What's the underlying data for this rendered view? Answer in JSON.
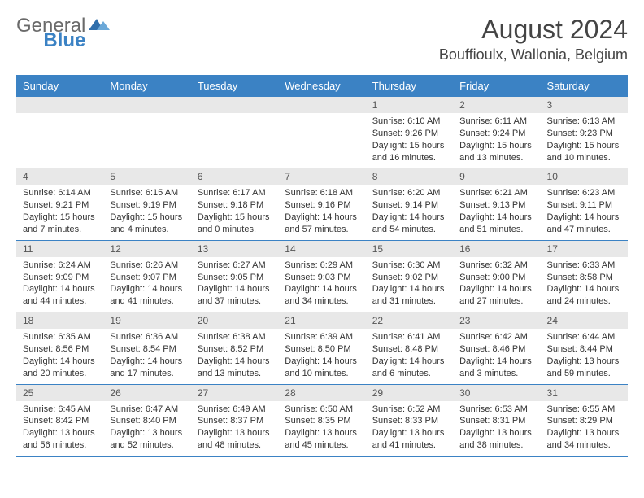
{
  "brand": {
    "word1": "General",
    "word2": "Blue"
  },
  "title": "August 2024",
  "location": "Bouffioulx, Wallonia, Belgium",
  "colors": {
    "header_bg": "#3b82c4",
    "header_text": "#ffffff",
    "daynum_bg": "#e8e8e8",
    "border": "#3b82c4",
    "body_text": "#333333",
    "logo_gray": "#6a6a6a",
    "logo_blue": "#3b82c4"
  },
  "day_names": [
    "Sunday",
    "Monday",
    "Tuesday",
    "Wednesday",
    "Thursday",
    "Friday",
    "Saturday"
  ],
  "weeks": [
    [
      null,
      null,
      null,
      null,
      {
        "n": "1",
        "sr": "Sunrise: 6:10 AM",
        "ss": "Sunset: 9:26 PM",
        "dl": "Daylight: 15 hours and 16 minutes."
      },
      {
        "n": "2",
        "sr": "Sunrise: 6:11 AM",
        "ss": "Sunset: 9:24 PM",
        "dl": "Daylight: 15 hours and 13 minutes."
      },
      {
        "n": "3",
        "sr": "Sunrise: 6:13 AM",
        "ss": "Sunset: 9:23 PM",
        "dl": "Daylight: 15 hours and 10 minutes."
      }
    ],
    [
      {
        "n": "4",
        "sr": "Sunrise: 6:14 AM",
        "ss": "Sunset: 9:21 PM",
        "dl": "Daylight: 15 hours and 7 minutes."
      },
      {
        "n": "5",
        "sr": "Sunrise: 6:15 AM",
        "ss": "Sunset: 9:19 PM",
        "dl": "Daylight: 15 hours and 4 minutes."
      },
      {
        "n": "6",
        "sr": "Sunrise: 6:17 AM",
        "ss": "Sunset: 9:18 PM",
        "dl": "Daylight: 15 hours and 0 minutes."
      },
      {
        "n": "7",
        "sr": "Sunrise: 6:18 AM",
        "ss": "Sunset: 9:16 PM",
        "dl": "Daylight: 14 hours and 57 minutes."
      },
      {
        "n": "8",
        "sr": "Sunrise: 6:20 AM",
        "ss": "Sunset: 9:14 PM",
        "dl": "Daylight: 14 hours and 54 minutes."
      },
      {
        "n": "9",
        "sr": "Sunrise: 6:21 AM",
        "ss": "Sunset: 9:13 PM",
        "dl": "Daylight: 14 hours and 51 minutes."
      },
      {
        "n": "10",
        "sr": "Sunrise: 6:23 AM",
        "ss": "Sunset: 9:11 PM",
        "dl": "Daylight: 14 hours and 47 minutes."
      }
    ],
    [
      {
        "n": "11",
        "sr": "Sunrise: 6:24 AM",
        "ss": "Sunset: 9:09 PM",
        "dl": "Daylight: 14 hours and 44 minutes."
      },
      {
        "n": "12",
        "sr": "Sunrise: 6:26 AM",
        "ss": "Sunset: 9:07 PM",
        "dl": "Daylight: 14 hours and 41 minutes."
      },
      {
        "n": "13",
        "sr": "Sunrise: 6:27 AM",
        "ss": "Sunset: 9:05 PM",
        "dl": "Daylight: 14 hours and 37 minutes."
      },
      {
        "n": "14",
        "sr": "Sunrise: 6:29 AM",
        "ss": "Sunset: 9:03 PM",
        "dl": "Daylight: 14 hours and 34 minutes."
      },
      {
        "n": "15",
        "sr": "Sunrise: 6:30 AM",
        "ss": "Sunset: 9:02 PM",
        "dl": "Daylight: 14 hours and 31 minutes."
      },
      {
        "n": "16",
        "sr": "Sunrise: 6:32 AM",
        "ss": "Sunset: 9:00 PM",
        "dl": "Daylight: 14 hours and 27 minutes."
      },
      {
        "n": "17",
        "sr": "Sunrise: 6:33 AM",
        "ss": "Sunset: 8:58 PM",
        "dl": "Daylight: 14 hours and 24 minutes."
      }
    ],
    [
      {
        "n": "18",
        "sr": "Sunrise: 6:35 AM",
        "ss": "Sunset: 8:56 PM",
        "dl": "Daylight: 14 hours and 20 minutes."
      },
      {
        "n": "19",
        "sr": "Sunrise: 6:36 AM",
        "ss": "Sunset: 8:54 PM",
        "dl": "Daylight: 14 hours and 17 minutes."
      },
      {
        "n": "20",
        "sr": "Sunrise: 6:38 AM",
        "ss": "Sunset: 8:52 PM",
        "dl": "Daylight: 14 hours and 13 minutes."
      },
      {
        "n": "21",
        "sr": "Sunrise: 6:39 AM",
        "ss": "Sunset: 8:50 PM",
        "dl": "Daylight: 14 hours and 10 minutes."
      },
      {
        "n": "22",
        "sr": "Sunrise: 6:41 AM",
        "ss": "Sunset: 8:48 PM",
        "dl": "Daylight: 14 hours and 6 minutes."
      },
      {
        "n": "23",
        "sr": "Sunrise: 6:42 AM",
        "ss": "Sunset: 8:46 PM",
        "dl": "Daylight: 14 hours and 3 minutes."
      },
      {
        "n": "24",
        "sr": "Sunrise: 6:44 AM",
        "ss": "Sunset: 8:44 PM",
        "dl": "Daylight: 13 hours and 59 minutes."
      }
    ],
    [
      {
        "n": "25",
        "sr": "Sunrise: 6:45 AM",
        "ss": "Sunset: 8:42 PM",
        "dl": "Daylight: 13 hours and 56 minutes."
      },
      {
        "n": "26",
        "sr": "Sunrise: 6:47 AM",
        "ss": "Sunset: 8:40 PM",
        "dl": "Daylight: 13 hours and 52 minutes."
      },
      {
        "n": "27",
        "sr": "Sunrise: 6:49 AM",
        "ss": "Sunset: 8:37 PM",
        "dl": "Daylight: 13 hours and 48 minutes."
      },
      {
        "n": "28",
        "sr": "Sunrise: 6:50 AM",
        "ss": "Sunset: 8:35 PM",
        "dl": "Daylight: 13 hours and 45 minutes."
      },
      {
        "n": "29",
        "sr": "Sunrise: 6:52 AM",
        "ss": "Sunset: 8:33 PM",
        "dl": "Daylight: 13 hours and 41 minutes."
      },
      {
        "n": "30",
        "sr": "Sunrise: 6:53 AM",
        "ss": "Sunset: 8:31 PM",
        "dl": "Daylight: 13 hours and 38 minutes."
      },
      {
        "n": "31",
        "sr": "Sunrise: 6:55 AM",
        "ss": "Sunset: 8:29 PM",
        "dl": "Daylight: 13 hours and 34 minutes."
      }
    ]
  ]
}
